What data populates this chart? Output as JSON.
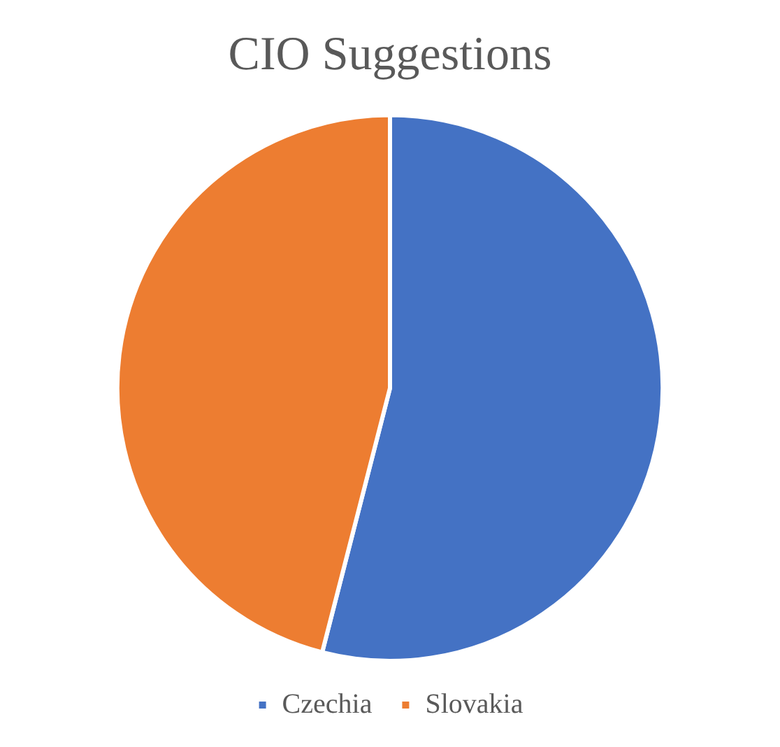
{
  "chart_data": {
    "type": "pie",
    "title": "CIO Suggestions",
    "categories": [
      "Czechia",
      "Slovakia"
    ],
    "values": [
      54,
      46
    ],
    "colors": [
      "#4472c4",
      "#ed7d31"
    ],
    "legend": "bottom"
  }
}
